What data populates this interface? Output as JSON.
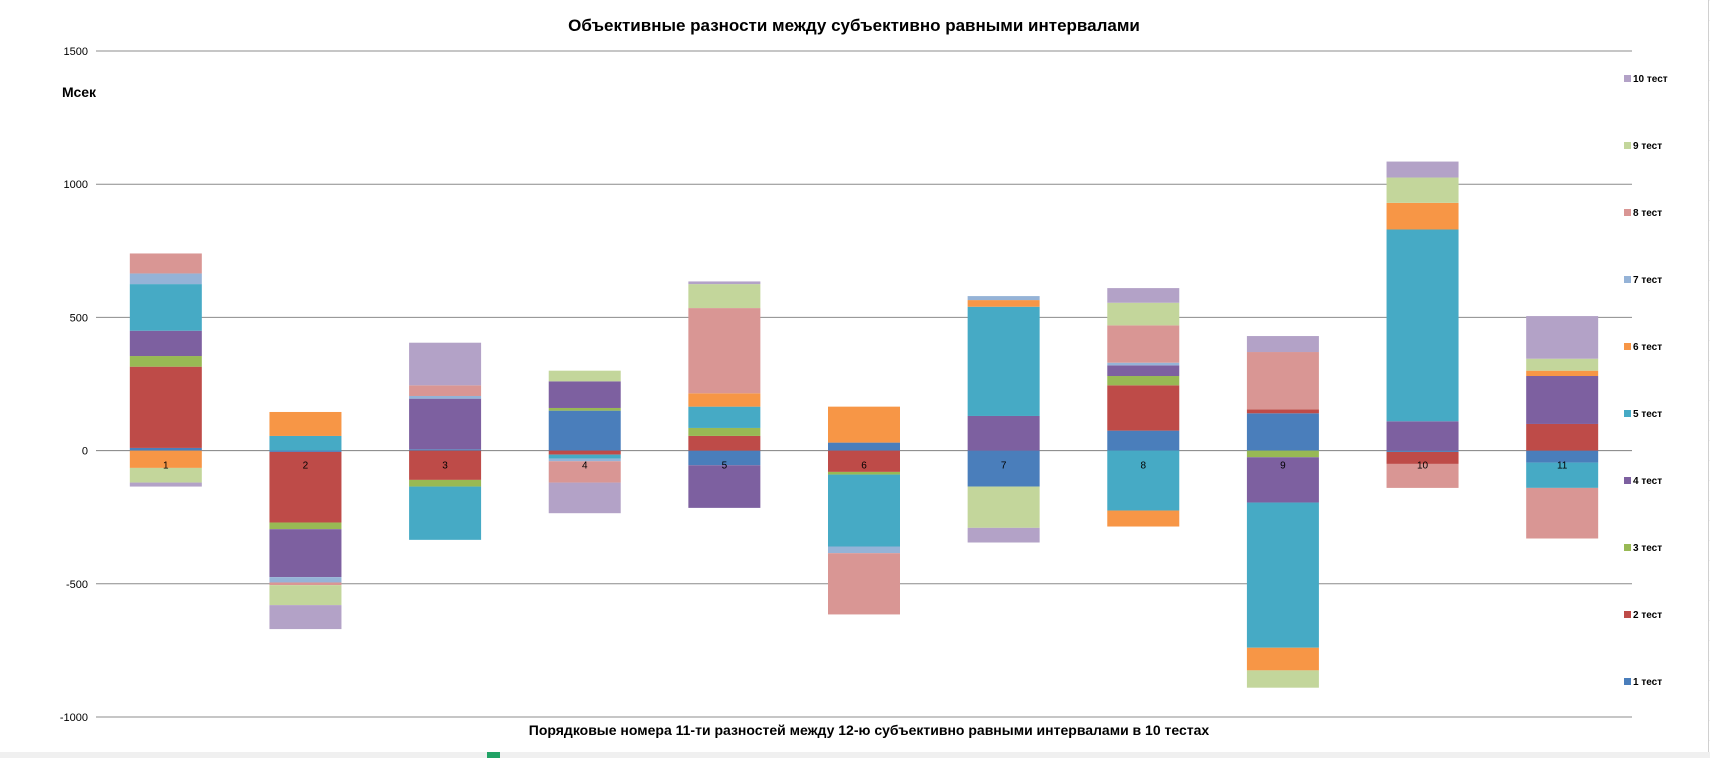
{
  "chart_data": {
    "type": "bar",
    "stacked": true,
    "title": "Объективные разности между субъективно равными интервалами",
    "xlabel": "Порядковые  номера  11-ти разностей  между  12-ю субъективно   равными  интервалами  в 10 тестах",
    "ylabel": "Мсек",
    "ylim": [
      -1000,
      1500
    ],
    "yticks": [
      -1000,
      -500,
      0,
      500,
      1000,
      1500
    ],
    "grid": true,
    "legend_position": "right",
    "categories": [
      "1",
      "2",
      "3",
      "4",
      "5",
      "6",
      "7",
      "8",
      "9",
      "10",
      "11"
    ],
    "series": [
      {
        "name": "1 тест",
        "color": "#4a7ebb",
        "values": [
          10,
          -5,
          5,
          150,
          -55,
          30,
          -135,
          75,
          140,
          -5,
          -45
        ]
      },
      {
        "name": "2 тест",
        "color": "#be4b48",
        "values": [
          305,
          -265,
          -110,
          -15,
          55,
          -80,
          0,
          170,
          15,
          -45,
          100
        ]
      },
      {
        "name": "3 тест",
        "color": "#98b954",
        "values": [
          40,
          -25,
          -25,
          10,
          30,
          -10,
          0,
          35,
          -25,
          0,
          0
        ]
      },
      {
        "name": "4 тест",
        "color": "#7d60a0",
        "values": [
          95,
          -180,
          190,
          100,
          -160,
          0,
          130,
          40,
          -170,
          110,
          180
        ]
      },
      {
        "name": "5 тест",
        "color": "#46aac5",
        "values": [
          175,
          55,
          -200,
          -15,
          80,
          -270,
          410,
          -225,
          -545,
          720,
          -95
        ]
      },
      {
        "name": "6 тест",
        "color": "#f79646",
        "values": [
          -65,
          90,
          0,
          0,
          50,
          135,
          25,
          -60,
          -85,
          100,
          20
        ]
      },
      {
        "name": "7 тест",
        "color": "#95b3d7",
        "values": [
          40,
          -20,
          10,
          -10,
          0,
          -25,
          15,
          10,
          0,
          0,
          0
        ]
      },
      {
        "name": "8 тест",
        "color": "#d99694",
        "values": [
          75,
          -10,
          40,
          -80,
          320,
          -230,
          0,
          140,
          215,
          -90,
          -190
        ]
      },
      {
        "name": "9 тест",
        "color": "#c3d69b",
        "values": [
          -55,
          -75,
          0,
          40,
          90,
          0,
          -155,
          85,
          -65,
          95,
          45
        ]
      },
      {
        "name": "10 тест",
        "color": "#b3a2c7",
        "values": [
          -15,
          -90,
          160,
          -115,
          10,
          0,
          -55,
          55,
          60,
          60,
          160
        ]
      }
    ]
  }
}
